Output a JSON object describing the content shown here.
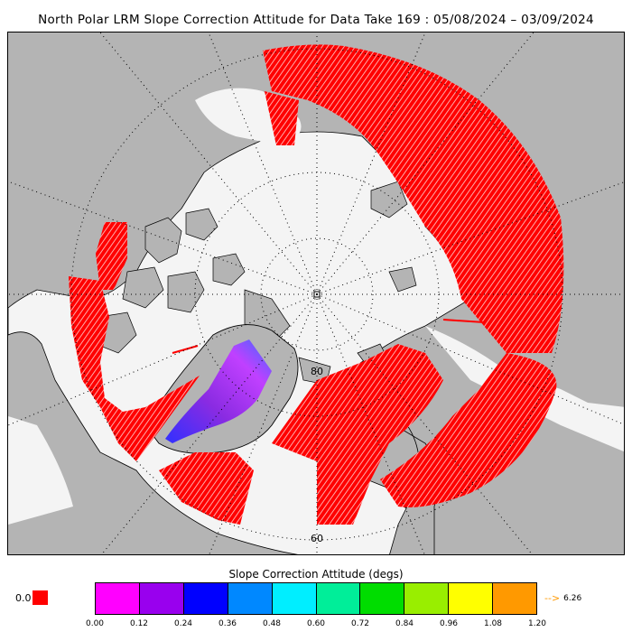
{
  "title": "North Polar LRM Slope Correction Attitude for Data Take 169 : 05/08/2024 – 03/09/2024",
  "map": {
    "projection": "north polar stereographic",
    "latitude_labels": [
      "80",
      "60"
    ],
    "colors": {
      "land": "#b4b4b4",
      "ocean": "#f4f4f4",
      "coverage": "#ff0000",
      "graticule": "#000000"
    }
  },
  "legend": {
    "title": "Slope Correction Attitude (degs)",
    "nodata_label": "0.0",
    "nodata_color": "#ff0000",
    "bins": [
      {
        "color": "#ff00ff"
      },
      {
        "color": "#9900ee"
      },
      {
        "color": "#0000ff"
      },
      {
        "color": "#0088ff"
      },
      {
        "color": "#00eeff"
      },
      {
        "color": "#00ee99"
      },
      {
        "color": "#00dd00"
      },
      {
        "color": "#99ee00"
      },
      {
        "color": "#ffff00"
      },
      {
        "color": "#ff9900"
      }
    ],
    "ticks": [
      "0.00",
      "0.12",
      "0.24",
      "0.36",
      "0.48",
      "0.60",
      "0.72",
      "0.84",
      "0.96",
      "1.08",
      "1.20"
    ],
    "overflow_label": "6.26",
    "overflow_arrow": "--> "
  }
}
